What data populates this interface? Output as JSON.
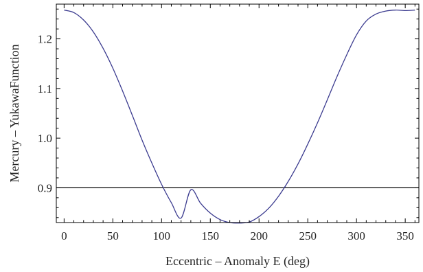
{
  "chart_data": {
    "type": "line",
    "title": "",
    "xlabel": "Eccentric – Anomaly E (deg)",
    "ylabel": "Mercury – YukawaFunction",
    "xlim": [
      -8,
      364
    ],
    "ylim": [
      0.83,
      1.27
    ],
    "x_ticks": [
      {
        "value": 0,
        "label": "0"
      },
      {
        "value": 50,
        "label": "50"
      },
      {
        "value": 100,
        "label": "100"
      },
      {
        "value": 150,
        "label": "150"
      },
      {
        "value": 200,
        "label": "200"
      },
      {
        "value": 250,
        "label": "250"
      },
      {
        "value": 300,
        "label": "300"
      },
      {
        "value": 350,
        "label": "350"
      }
    ],
    "y_ticks": [
      {
        "value": 0.9,
        "label": "0.9"
      },
      {
        "value": 1.0,
        "label": "1.0"
      },
      {
        "value": 1.1,
        "label": "1.1"
      },
      {
        "value": 1.2,
        "label": "1.2"
      }
    ],
    "grid": false,
    "series": [
      {
        "color": "#3b3b8f",
        "x": [
          0,
          10,
          20,
          30,
          40,
          50,
          60,
          70,
          80,
          90,
          100,
          110,
          120,
          130,
          140,
          150,
          160,
          170,
          180,
          190,
          200,
          210,
          220,
          230,
          240,
          250,
          260,
          270,
          280,
          290,
          300,
          310,
          320,
          330,
          340,
          350,
          360
        ],
        "y": [
          1.258,
          1.253,
          1.238,
          1.214,
          1.181,
          1.141,
          1.095,
          1.046,
          0.996,
          0.95,
          0.907,
          0.87,
          0.839,
          0.896,
          0.869,
          0.849,
          0.836,
          0.83,
          0.829,
          0.831,
          0.842,
          0.859,
          0.883,
          0.913,
          0.948,
          0.988,
          1.031,
          1.077,
          1.124,
          1.168,
          1.208,
          1.236,
          1.25,
          1.256,
          1.258,
          1.257,
          1.258
        ]
      }
    ],
    "reference_line": {
      "y": 0.9,
      "color": "#000000"
    },
    "colors": {
      "curve": "#3b3b8f",
      "axes": "#000000",
      "reference": "#000000"
    }
  }
}
